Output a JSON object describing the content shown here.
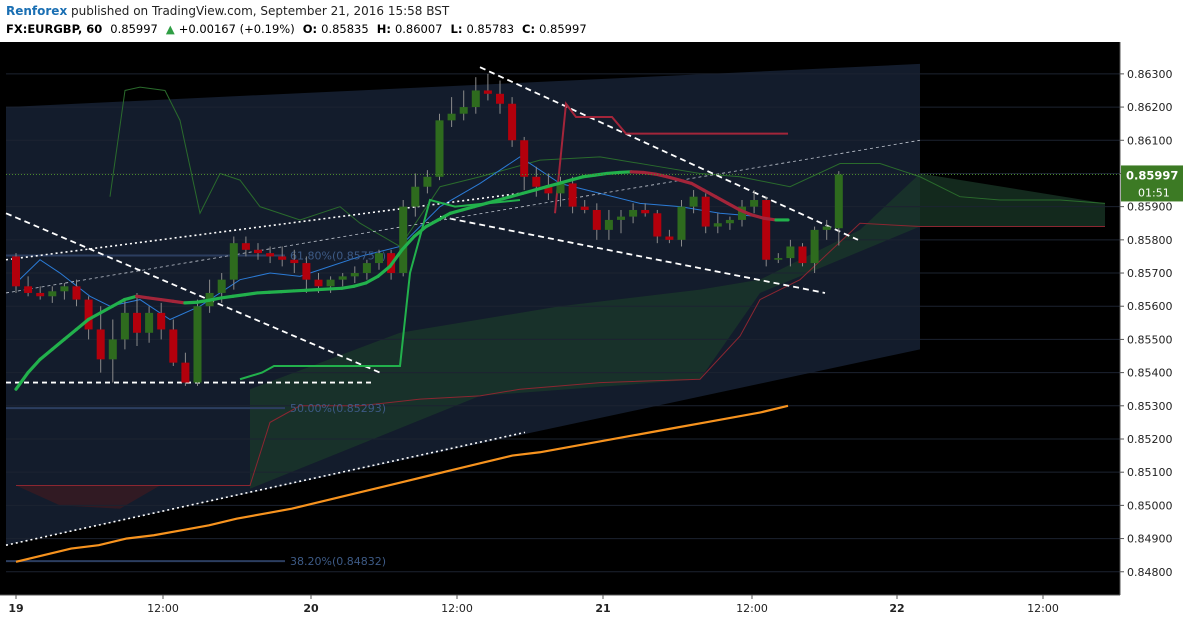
{
  "header": {
    "author": "Renforex",
    "published": "published on TradingView.com, September 21, 2016 15:58 BST",
    "symbol": "FX:EURGBP, 60",
    "last": "0.85997",
    "change_arrow": "▲",
    "change": "+0.00167 (+0.19%)",
    "o_label": "O:",
    "o_value": "0.85835",
    "h_label": "H:",
    "h_value": "0.86007",
    "l_label": "L:",
    "l_value": "0.85783",
    "c_label": "C:",
    "c_value": "0.85997"
  },
  "colors": {
    "background": "#000000",
    "channel": "#131c2c",
    "bull": "#2e6b1e",
    "bear": "#b3000c",
    "ema_up": "#22b14c",
    "ema_down": "#a3253a",
    "sma": "#f7931e",
    "trendline": "#ffffff",
    "cloud_green": "#1b3a2a",
    "cloud_red": "#3a1a22",
    "price_label": "#3c7a24"
  },
  "chart_data": {
    "type": "candlestick",
    "title": "",
    "xlabel": "",
    "ylabel": "",
    "ylim": [
      0.8473,
      0.8639
    ],
    "y_ticks": [
      "0.86300",
      "0.86200",
      "0.86100",
      "0.86000",
      "0.85900",
      "0.85800",
      "0.85700",
      "0.85600",
      "0.85500",
      "0.85400",
      "0.85300",
      "0.85200",
      "0.85100",
      "0.85000",
      "0.84900",
      "0.84800"
    ],
    "x_ticks": [
      "19",
      "12:00",
      "20",
      "12:00",
      "21",
      "12:00",
      "22",
      "12:00"
    ],
    "current_price": "0.85997",
    "countdown": "01:51",
    "fib_levels": [
      {
        "label": "61.80%(0.85753)",
        "value": 0.85753
      },
      {
        "label": "50.00%(0.85293)",
        "value": 0.85293
      },
      {
        "label": "38.20%(0.84832)",
        "value": 0.84832
      }
    ],
    "candles": [
      {
        "o": 0.8575,
        "h": 0.8576,
        "l": 0.8564,
        "c": 0.8566
      },
      {
        "o": 0.8566,
        "h": 0.8569,
        "l": 0.8563,
        "c": 0.8564
      },
      {
        "o": 0.8564,
        "h": 0.8566,
        "l": 0.8562,
        "c": 0.8563
      },
      {
        "o": 0.8563,
        "h": 0.8566,
        "l": 0.8561,
        "c": 0.85645
      },
      {
        "o": 0.85645,
        "h": 0.8567,
        "l": 0.8562,
        "c": 0.8566
      },
      {
        "o": 0.8566,
        "h": 0.8568,
        "l": 0.856,
        "c": 0.8562
      },
      {
        "o": 0.8562,
        "h": 0.8563,
        "l": 0.855,
        "c": 0.8553
      },
      {
        "o": 0.8553,
        "h": 0.856,
        "l": 0.854,
        "c": 0.8544
      },
      {
        "o": 0.8544,
        "h": 0.8556,
        "l": 0.8537,
        "c": 0.855
      },
      {
        "o": 0.855,
        "h": 0.8562,
        "l": 0.8547,
        "c": 0.8558
      },
      {
        "o": 0.8558,
        "h": 0.8564,
        "l": 0.8548,
        "c": 0.8552
      },
      {
        "o": 0.8552,
        "h": 0.856,
        "l": 0.8549,
        "c": 0.8558
      },
      {
        "o": 0.8558,
        "h": 0.8561,
        "l": 0.855,
        "c": 0.8553
      },
      {
        "o": 0.8553,
        "h": 0.8556,
        "l": 0.8542,
        "c": 0.8543
      },
      {
        "o": 0.8543,
        "h": 0.8546,
        "l": 0.8536,
        "c": 0.8537
      },
      {
        "o": 0.8537,
        "h": 0.8562,
        "l": 0.8536,
        "c": 0.856
      },
      {
        "o": 0.856,
        "h": 0.8568,
        "l": 0.8558,
        "c": 0.8564
      },
      {
        "o": 0.8564,
        "h": 0.857,
        "l": 0.8561,
        "c": 0.8568
      },
      {
        "o": 0.8568,
        "h": 0.8581,
        "l": 0.8565,
        "c": 0.8579
      },
      {
        "o": 0.8579,
        "h": 0.8581,
        "l": 0.8575,
        "c": 0.8577
      },
      {
        "o": 0.8577,
        "h": 0.8579,
        "l": 0.8574,
        "c": 0.8576
      },
      {
        "o": 0.8576,
        "h": 0.8578,
        "l": 0.8573,
        "c": 0.8575
      },
      {
        "o": 0.8575,
        "h": 0.8578,
        "l": 0.8572,
        "c": 0.8574
      },
      {
        "o": 0.8574,
        "h": 0.8577,
        "l": 0.857,
        "c": 0.8573
      },
      {
        "o": 0.8573,
        "h": 0.8575,
        "l": 0.8564,
        "c": 0.8568
      },
      {
        "o": 0.8568,
        "h": 0.857,
        "l": 0.8564,
        "c": 0.8566
      },
      {
        "o": 0.8566,
        "h": 0.8569,
        "l": 0.8564,
        "c": 0.8568
      },
      {
        "o": 0.8568,
        "h": 0.857,
        "l": 0.8566,
        "c": 0.8569
      },
      {
        "o": 0.8569,
        "h": 0.8572,
        "l": 0.8567,
        "c": 0.857
      },
      {
        "o": 0.857,
        "h": 0.8574,
        "l": 0.8568,
        "c": 0.8573
      },
      {
        "o": 0.8573,
        "h": 0.8577,
        "l": 0.8571,
        "c": 0.8576
      },
      {
        "o": 0.8576,
        "h": 0.8577,
        "l": 0.8568,
        "c": 0.857
      },
      {
        "o": 0.857,
        "h": 0.8592,
        "l": 0.8569,
        "c": 0.859
      },
      {
        "o": 0.859,
        "h": 0.86,
        "l": 0.8587,
        "c": 0.8596
      },
      {
        "o": 0.8596,
        "h": 0.8601,
        "l": 0.8594,
        "c": 0.8599
      },
      {
        "o": 0.8599,
        "h": 0.8618,
        "l": 0.8598,
        "c": 0.8616
      },
      {
        "o": 0.8616,
        "h": 0.8623,
        "l": 0.8614,
        "c": 0.8618
      },
      {
        "o": 0.8618,
        "h": 0.8625,
        "l": 0.8616,
        "c": 0.862
      },
      {
        "o": 0.862,
        "h": 0.8629,
        "l": 0.8618,
        "c": 0.8625
      },
      {
        "o": 0.8625,
        "h": 0.863,
        "l": 0.8622,
        "c": 0.8624
      },
      {
        "o": 0.8624,
        "h": 0.8628,
        "l": 0.8618,
        "c": 0.8621
      },
      {
        "o": 0.8621,
        "h": 0.8623,
        "l": 0.8608,
        "c": 0.861
      },
      {
        "o": 0.861,
        "h": 0.8611,
        "l": 0.8595,
        "c": 0.8599
      },
      {
        "o": 0.8599,
        "h": 0.8602,
        "l": 0.8593,
        "c": 0.8596
      },
      {
        "o": 0.8596,
        "h": 0.86,
        "l": 0.8592,
        "c": 0.8594
      },
      {
        "o": 0.8594,
        "h": 0.8599,
        "l": 0.859,
        "c": 0.8597
      },
      {
        "o": 0.8597,
        "h": 0.8599,
        "l": 0.8588,
        "c": 0.859
      },
      {
        "o": 0.859,
        "h": 0.8592,
        "l": 0.8588,
        "c": 0.8589
      },
      {
        "o": 0.8589,
        "h": 0.8591,
        "l": 0.858,
        "c": 0.8583
      },
      {
        "o": 0.8583,
        "h": 0.8589,
        "l": 0.858,
        "c": 0.8586
      },
      {
        "o": 0.8586,
        "h": 0.8589,
        "l": 0.8582,
        "c": 0.8587
      },
      {
        "o": 0.8587,
        "h": 0.8591,
        "l": 0.8585,
        "c": 0.8589
      },
      {
        "o": 0.8589,
        "h": 0.8591,
        "l": 0.8587,
        "c": 0.8588
      },
      {
        "o": 0.8588,
        "h": 0.8589,
        "l": 0.8579,
        "c": 0.8581
      },
      {
        "o": 0.8581,
        "h": 0.8583,
        "l": 0.8579,
        "c": 0.858
      },
      {
        "o": 0.858,
        "h": 0.8592,
        "l": 0.8578,
        "c": 0.859
      },
      {
        "o": 0.859,
        "h": 0.8595,
        "l": 0.8588,
        "c": 0.8593
      },
      {
        "o": 0.8593,
        "h": 0.8594,
        "l": 0.8582,
        "c": 0.8584
      },
      {
        "o": 0.8584,
        "h": 0.8588,
        "l": 0.8582,
        "c": 0.8585
      },
      {
        "o": 0.8585,
        "h": 0.8587,
        "l": 0.8583,
        "c": 0.8586
      },
      {
        "o": 0.8586,
        "h": 0.8592,
        "l": 0.8584,
        "c": 0.859
      },
      {
        "o": 0.859,
        "h": 0.8595,
        "l": 0.8588,
        "c": 0.8592
      },
      {
        "o": 0.8592,
        "h": 0.8593,
        "l": 0.8572,
        "c": 0.8574
      },
      {
        "o": 0.8574,
        "h": 0.8576,
        "l": 0.8573,
        "c": 0.85745
      },
      {
        "o": 0.85745,
        "h": 0.858,
        "l": 0.8572,
        "c": 0.8578
      },
      {
        "o": 0.8578,
        "h": 0.8579,
        "l": 0.8572,
        "c": 0.8573
      },
      {
        "o": 0.8573,
        "h": 0.8584,
        "l": 0.857,
        "c": 0.8583
      },
      {
        "o": 0.8583,
        "h": 0.8586,
        "l": 0.858,
        "c": 0.8584
      },
      {
        "o": 0.85835,
        "h": 0.86007,
        "l": 0.85783,
        "c": 0.85997
      }
    ],
    "ema_series": [
      0.8535,
      0.854,
      0.8544,
      0.8547,
      0.855,
      0.8553,
      0.8556,
      0.8558,
      0.856,
      0.8562,
      0.8563,
      0.85625,
      0.8562,
      0.85615,
      0.8561,
      0.85612,
      0.85618,
      0.85625,
      0.8563,
      0.85635,
      0.8564,
      0.85642,
      0.85644,
      0.85646,
      0.85648,
      0.8565,
      0.85652,
      0.85654,
      0.8566,
      0.8567,
      0.8569,
      0.8572,
      0.8577,
      0.8581,
      0.8584,
      0.8586,
      0.8588,
      0.8589,
      0.859,
      0.8591,
      0.8592,
      0.8593,
      0.8594,
      0.8595,
      0.8596,
      0.8597,
      0.8598,
      0.8599,
      0.85995,
      0.86,
      0.86003,
      0.86005,
      0.86003,
      0.85998,
      0.8599,
      0.8598,
      0.8597,
      0.8595,
      0.8593,
      0.8591,
      0.8589,
      0.85875,
      0.85865,
      0.8586,
      0.8586
    ],
    "sma_series": [
      0.8483,
      0.8485,
      0.8487,
      0.8488,
      0.849,
      0.8491,
      0.84925,
      0.8494,
      0.8496,
      0.84975,
      0.8499,
      0.8501,
      0.8503,
      0.8505,
      0.8507,
      0.8509,
      0.8511,
      0.8513,
      0.8515,
      0.8516,
      0.85175,
      0.8519,
      0.85205,
      0.8522,
      0.85235,
      0.8525,
      0.85265,
      0.8528,
      0.853
    ]
  }
}
